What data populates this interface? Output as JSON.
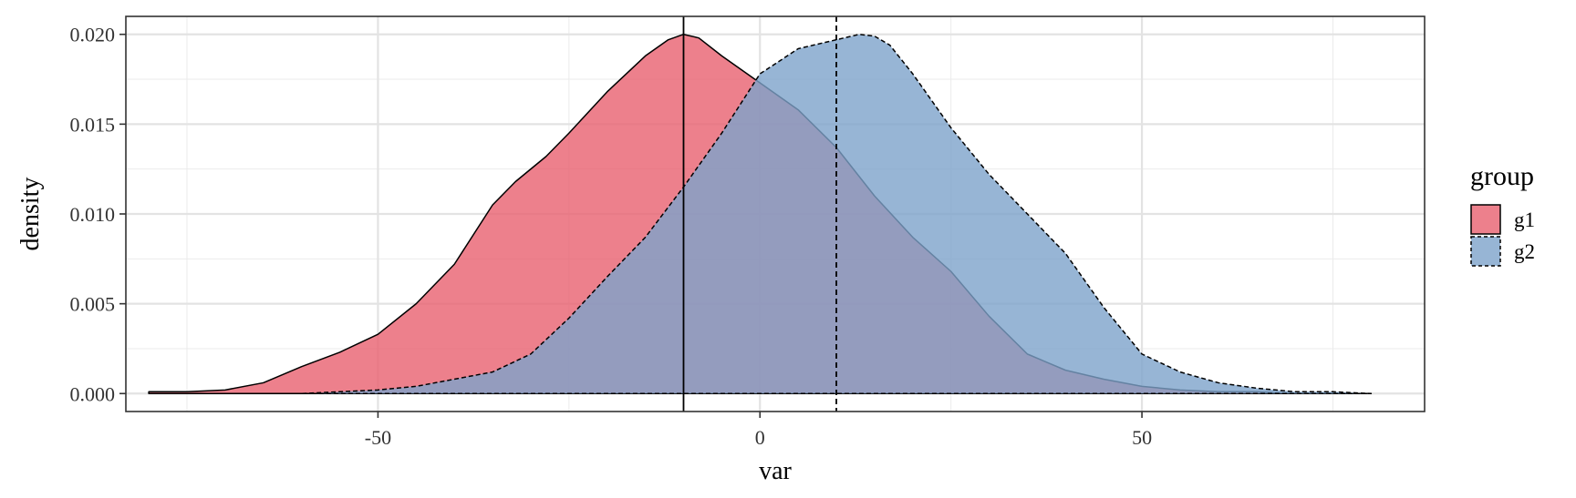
{
  "chart_data": {
    "type": "area",
    "xlabel": "var",
    "ylabel": "density",
    "xlim": [
      -83,
      87
    ],
    "ylim": [
      -0.001,
      0.021
    ],
    "x_ticks": [
      -50,
      0,
      50
    ],
    "x_tick_labels": [
      "-50",
      "0",
      "50"
    ],
    "y_ticks": [
      0.0,
      0.005,
      0.01,
      0.015,
      0.02
    ],
    "y_tick_labels": [
      "0.000",
      "0.005",
      "0.010",
      "0.015",
      "0.020"
    ],
    "grid": true,
    "legend": {
      "title": "group",
      "position": "right",
      "entries": [
        "g1",
        "g2"
      ]
    },
    "series": [
      {
        "name": "g1",
        "color": "#E8606F",
        "line_style": "solid",
        "mean_line": -10,
        "x": [
          -80,
          -75,
          -70,
          -65,
          -60,
          -55,
          -50,
          -45,
          -40,
          -35,
          -32,
          -28,
          -25,
          -20,
          -15,
          -12,
          -10,
          -8,
          -5,
          0,
          5,
          10,
          15,
          20,
          25,
          30,
          35,
          40,
          45,
          50,
          55,
          60,
          65,
          70,
          75,
          80
        ],
        "y": [
          0.0001,
          0.0001,
          0.0002,
          0.0006,
          0.0015,
          0.0023,
          0.0033,
          0.005,
          0.0072,
          0.0105,
          0.0118,
          0.0132,
          0.0145,
          0.0168,
          0.0188,
          0.0197,
          0.02,
          0.0198,
          0.0188,
          0.0173,
          0.0158,
          0.0137,
          0.011,
          0.0087,
          0.0068,
          0.0043,
          0.0022,
          0.0013,
          0.0008,
          0.0004,
          0.0002,
          0.0001,
          0.0001,
          0.0,
          0.0,
          0.0
        ]
      },
      {
        "name": "g2",
        "color": "#7DA3CB",
        "line_style": "dashed",
        "mean_line": 10,
        "x": [
          -80,
          -70,
          -60,
          -50,
          -45,
          -40,
          -35,
          -30,
          -25,
          -20,
          -15,
          -10,
          -5,
          0,
          5,
          10,
          13,
          15,
          17,
          20,
          25,
          30,
          35,
          40,
          45,
          50,
          55,
          60,
          65,
          70,
          75,
          80
        ],
        "y": [
          0.0,
          0.0,
          0.0,
          0.0002,
          0.0004,
          0.0008,
          0.0012,
          0.0022,
          0.0042,
          0.0065,
          0.0087,
          0.0115,
          0.0145,
          0.0178,
          0.0192,
          0.0197,
          0.02,
          0.0199,
          0.0194,
          0.0178,
          0.0148,
          0.0122,
          0.01,
          0.0078,
          0.0048,
          0.0022,
          0.0012,
          0.0006,
          0.0003,
          0.0001,
          0.0001,
          0.0
        ]
      }
    ]
  }
}
